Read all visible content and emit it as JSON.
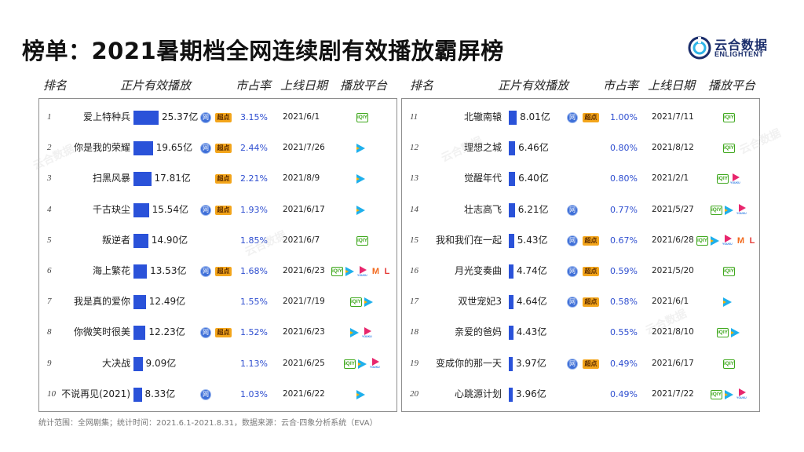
{
  "title": "榜单：2021暑期档全网连续剧有效播放霸屏榜",
  "logo": {
    "cn": "云合数据",
    "en": "ENLIGHTENT"
  },
  "headers": {
    "rank": "排名",
    "play": "正片有效播放",
    "share": "市占率",
    "date": "上线日期",
    "platform": "播放平台"
  },
  "badges": {
    "wang": "网",
    "chao": "超点"
  },
  "platform_labels": {
    "iqiyi": "iQIY",
    "mgtv": "M",
    "letv": "L"
  },
  "footer": "统计范围：全网剧集；统计时间：2021.6.1-2021.8.31，数据来源：云合·四象分析系统（EVA）",
  "colors": {
    "bar": "#2a52d9",
    "share_text": "#2f4fd0",
    "wang_badge": "#3e6fd8",
    "chao_badge": "#f3a51b",
    "panel_border": "#8e8e8e"
  },
  "chart_data": {
    "type": "bar",
    "unit": "亿",
    "rows": [
      {
        "rank": "1",
        "name": "爱上特种兵",
        "value": 25.37,
        "value_label": "25.37亿",
        "wang": true,
        "chao": true,
        "share": "3.15%",
        "date": "2021/6/1",
        "platforms": [
          "iqiyi"
        ]
      },
      {
        "rank": "2",
        "name": "你是我的荣耀",
        "value": 19.65,
        "value_label": "19.65亿",
        "wang": true,
        "chao": true,
        "share": "2.44%",
        "date": "2021/7/26",
        "platforms": [
          "tencent"
        ]
      },
      {
        "rank": "3",
        "name": "扫黑风暴",
        "value": 17.81,
        "value_label": "17.81亿",
        "wang": false,
        "chao": true,
        "share": "2.21%",
        "date": "2021/8/9",
        "platforms": [
          "tencent"
        ]
      },
      {
        "rank": "4",
        "name": "千古玦尘",
        "value": 15.54,
        "value_label": "15.54亿",
        "wang": true,
        "chao": true,
        "share": "1.93%",
        "date": "2021/6/17",
        "platforms": [
          "tencent"
        ]
      },
      {
        "rank": "5",
        "name": "叛逆者",
        "value": 14.9,
        "value_label": "14.90亿",
        "wang": false,
        "chao": false,
        "share": "1.85%",
        "date": "2021/6/7",
        "platforms": [
          "iqiyi"
        ]
      },
      {
        "rank": "6",
        "name": "海上繁花",
        "value": 13.53,
        "value_label": "13.53亿",
        "wang": true,
        "chao": true,
        "share": "1.68%",
        "date": "2021/6/23",
        "platforms": [
          "iqiyi",
          "tencent",
          "youku",
          "mgtv",
          "letv"
        ]
      },
      {
        "rank": "7",
        "name": "我是真的爱你",
        "value": 12.49,
        "value_label": "12.49亿",
        "wang": false,
        "chao": false,
        "share": "1.55%",
        "date": "2021/7/19",
        "platforms": [
          "iqiyi",
          "tencent"
        ]
      },
      {
        "rank": "8",
        "name": "你微笑时很美",
        "value": 12.23,
        "value_label": "12.23亿",
        "wang": true,
        "chao": true,
        "share": "1.52%",
        "date": "2021/6/23",
        "platforms": [
          "tencent",
          "youku"
        ]
      },
      {
        "rank": "9",
        "name": "大决战",
        "value": 9.09,
        "value_label": "9.09亿",
        "wang": false,
        "chao": false,
        "share": "1.13%",
        "date": "2021/6/25",
        "platforms": [
          "iqiyi",
          "tencent",
          "youku"
        ]
      },
      {
        "rank": "10",
        "name": "不说再见(2021)",
        "value": 8.33,
        "value_label": "8.33亿",
        "wang": true,
        "chao": false,
        "share": "1.03%",
        "date": "2021/6/22",
        "platforms": [
          "tencent"
        ]
      },
      {
        "rank": "11",
        "name": "北辙南辕",
        "value": 8.01,
        "value_label": "8.01亿",
        "wang": true,
        "chao": true,
        "share": "1.00%",
        "date": "2021/7/11",
        "platforms": [
          "iqiyi"
        ]
      },
      {
        "rank": "12",
        "name": "理想之城",
        "value": 6.46,
        "value_label": "6.46亿",
        "wang": false,
        "chao": false,
        "share": "0.80%",
        "date": "2021/8/12",
        "platforms": [
          "iqiyi"
        ]
      },
      {
        "rank": "13",
        "name": "觉醒年代",
        "value": 6.4,
        "value_label": "6.40亿",
        "wang": false,
        "chao": false,
        "share": "0.80%",
        "date": "2021/2/1",
        "platforms": [
          "iqiyi",
          "youku"
        ]
      },
      {
        "rank": "14",
        "name": "壮志高飞",
        "value": 6.21,
        "value_label": "6.21亿",
        "wang": true,
        "chao": false,
        "share": "0.77%",
        "date": "2021/5/27",
        "platforms": [
          "iqiyi",
          "tencent",
          "youku"
        ]
      },
      {
        "rank": "15",
        "name": "我和我们在一起",
        "value": 5.43,
        "value_label": "5.43亿",
        "wang": true,
        "chao": true,
        "share": "0.67%",
        "date": "2021/6/28",
        "platforms": [
          "iqiyi",
          "tencent",
          "youku",
          "mgtv",
          "letv"
        ]
      },
      {
        "rank": "16",
        "name": "月光变奏曲",
        "value": 4.74,
        "value_label": "4.74亿",
        "wang": true,
        "chao": true,
        "share": "0.59%",
        "date": "2021/5/20",
        "platforms": [
          "iqiyi"
        ]
      },
      {
        "rank": "17",
        "name": "双世宠妃3",
        "value": 4.64,
        "value_label": "4.64亿",
        "wang": true,
        "chao": true,
        "share": "0.58%",
        "date": "2021/6/1",
        "platforms": [
          "tencent"
        ]
      },
      {
        "rank": "18",
        "name": "亲爱的爸妈",
        "value": 4.43,
        "value_label": "4.43亿",
        "wang": false,
        "chao": false,
        "share": "0.55%",
        "date": "2021/8/10",
        "platforms": [
          "iqiyi",
          "tencent"
        ]
      },
      {
        "rank": "19",
        "name": "变成你的那一天",
        "value": 3.97,
        "value_label": "3.97亿",
        "wang": true,
        "chao": true,
        "share": "0.49%",
        "date": "2021/6/17",
        "platforms": [
          "iqiyi"
        ]
      },
      {
        "rank": "20",
        "name": "心跳源计划",
        "value": 3.96,
        "value_label": "3.96亿",
        "wang": false,
        "chao": false,
        "share": "0.49%",
        "date": "2021/7/22",
        "platforms": [
          "iqiyi",
          "tencent",
          "youku"
        ]
      }
    ]
  }
}
